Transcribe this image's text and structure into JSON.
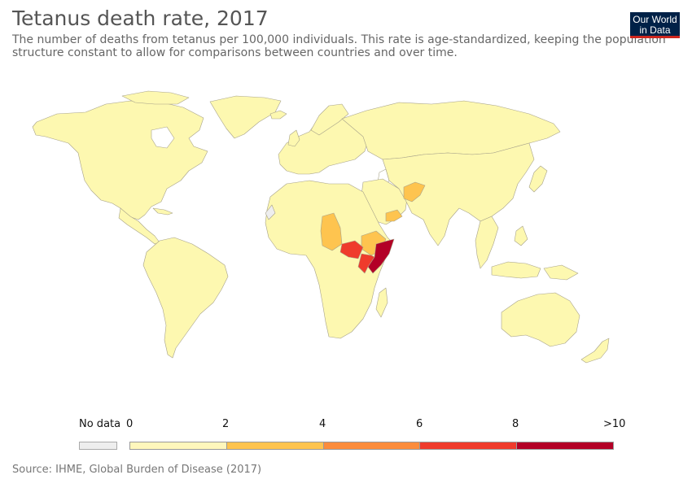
{
  "header": {
    "title": "Tetanus death rate, 2017",
    "subtitle_line1": "The number of deaths from tetanus per 100,000 individuals. This rate is age-standardized, keeping the population",
    "subtitle_line2": "structure constant to allow for comparisons between countries and over time."
  },
  "logo": {
    "line1": "Our World",
    "line2": "in Data"
  },
  "legend": {
    "nodata_label": "No data",
    "ticks": [
      "0",
      "2",
      "4",
      "6",
      "8",
      ">10"
    ],
    "nodata_color": "#eeeeee",
    "bin_colors": [
      "#fff7bc",
      "#fec44f",
      "#fb8c3c",
      "#ef3b2c",
      "#b30026"
    ]
  },
  "source": "Source: IHME, Global Burden of Disease (2017)",
  "colors": {
    "base_land": "#fdf8b0",
    "border": "#999999",
    "band_2_4": "#fec44f",
    "band_4_6": "#fb8c3c",
    "band_6_8": "#ef3b2c",
    "band_10plus": "#b30026"
  }
}
